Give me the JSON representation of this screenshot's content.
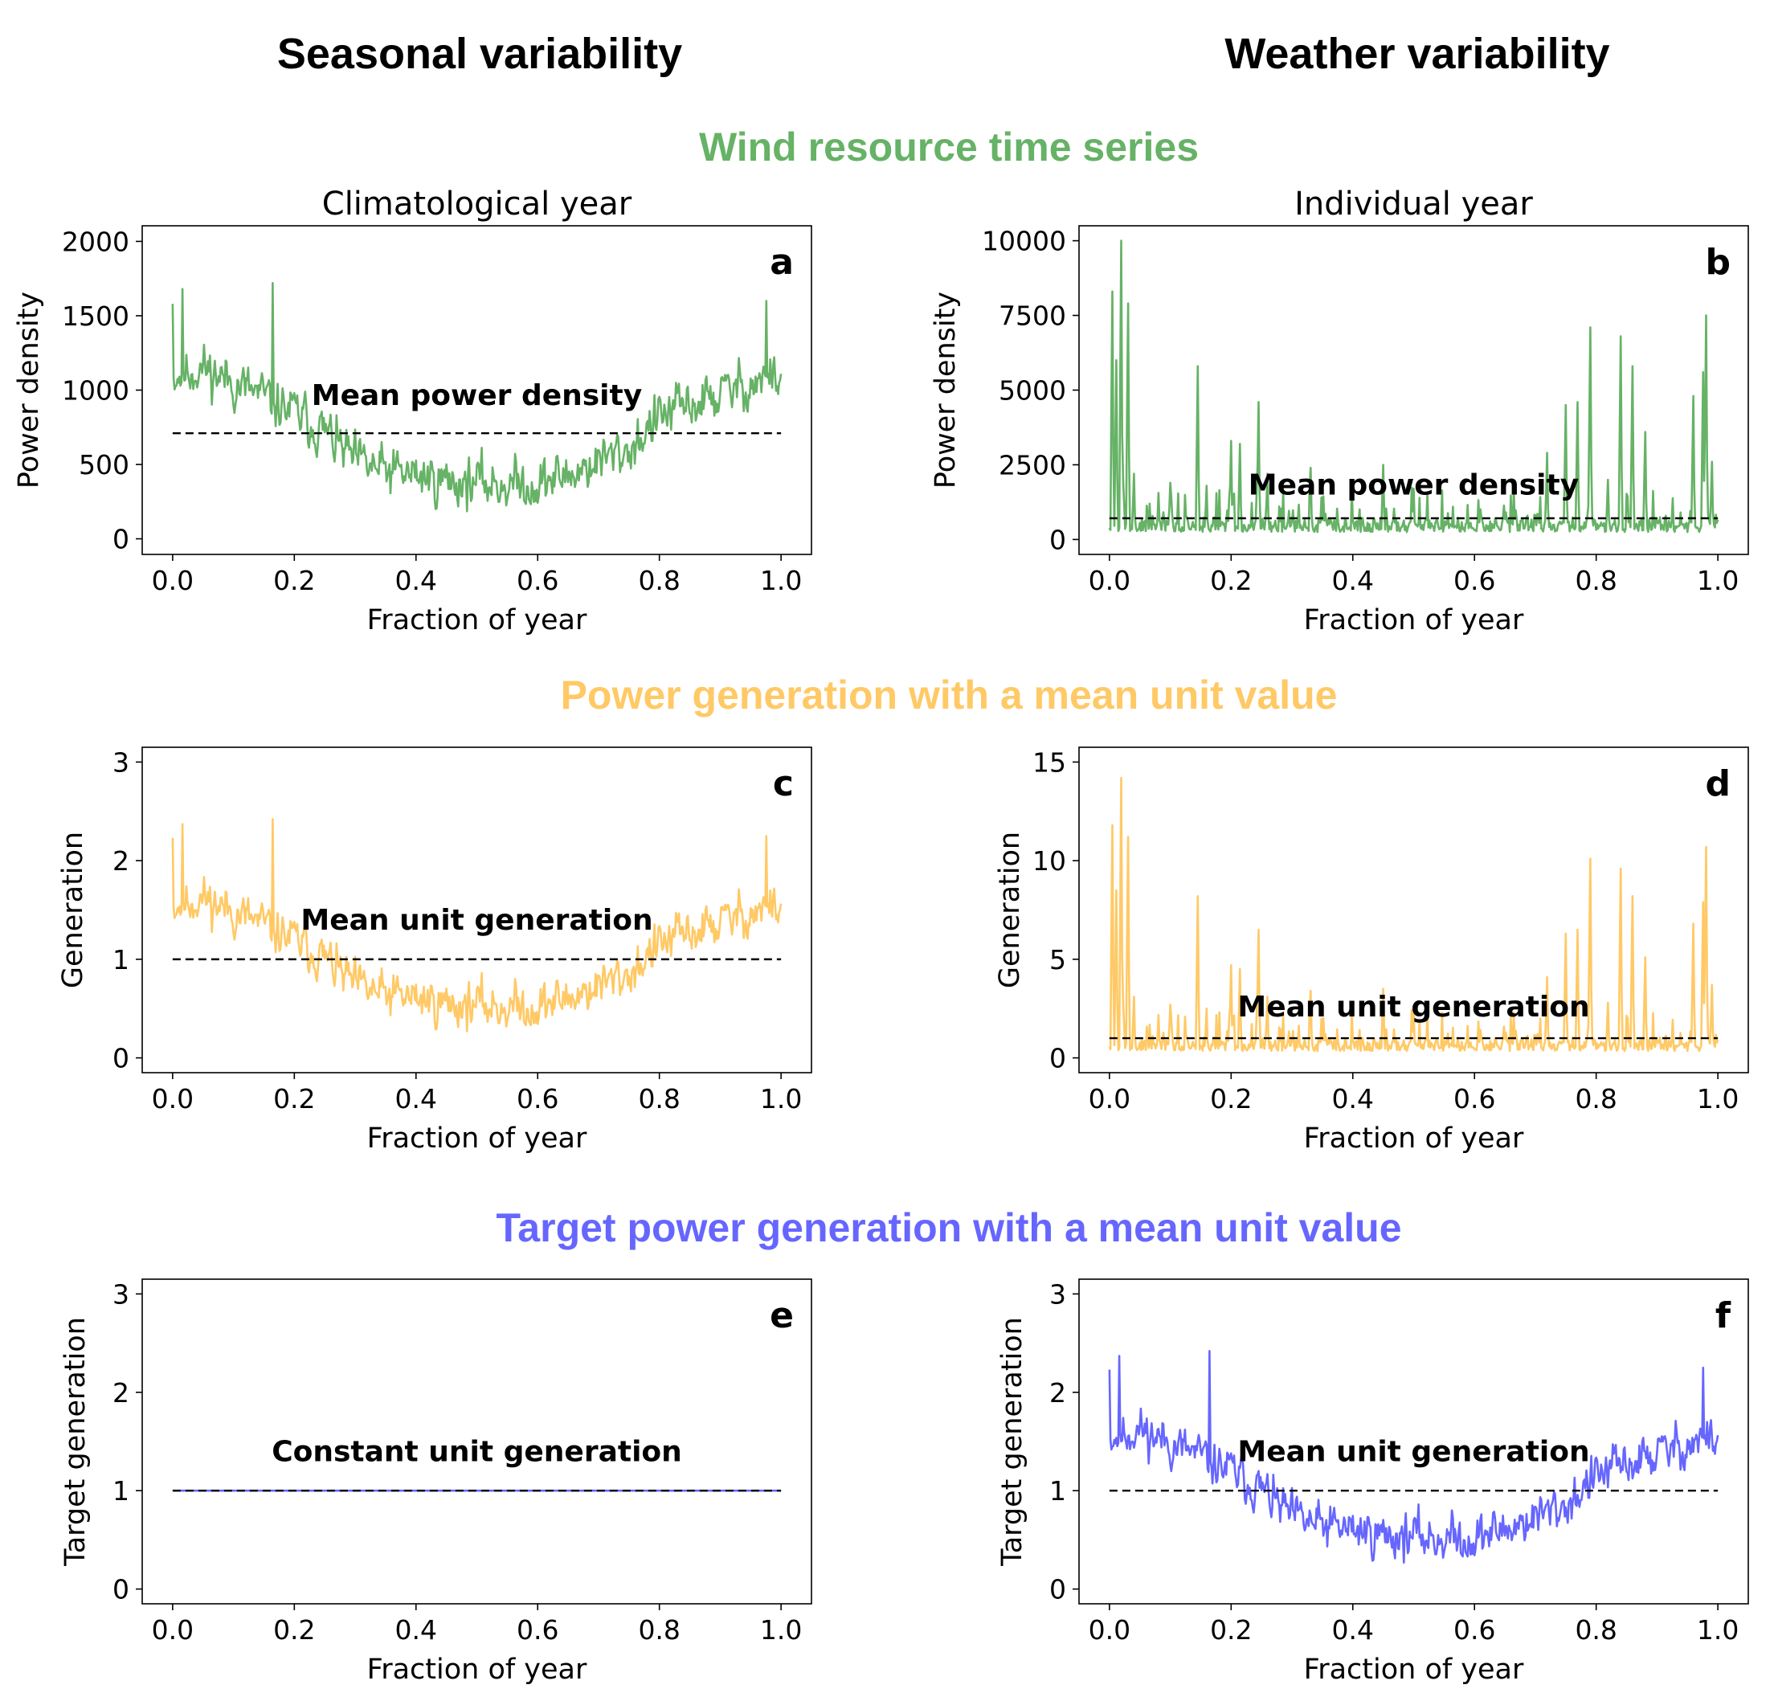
{
  "column_titles": [
    "Seasonal variability",
    "Weather variability"
  ],
  "row_titles": [
    {
      "text": "Wind resource time series",
      "color": "#66b266"
    },
    {
      "text": "Power generation with a mean unit value",
      "color": "#ffc966"
    },
    {
      "text": "Target power generation with a mean unit value",
      "color": "#6666ff"
    }
  ],
  "colors": {
    "green": "#66b266",
    "orange": "#ffc966",
    "blue": "#6666ff",
    "mean_line": "#000000"
  },
  "chart_data": [
    {
      "id": "a",
      "type": "line",
      "letter": "a",
      "title": "Climatological year",
      "xlabel": "Fraction of year",
      "ylabel": "Power density",
      "xlim": [
        -0.05,
        1.05
      ],
      "ylim": [
        -105,
        2105
      ],
      "xticks": [
        0.0,
        0.2,
        0.4,
        0.6,
        0.8,
        1.0
      ],
      "xtick_labels": [
        "0.0",
        "0.2",
        "0.4",
        "0.6",
        "0.8",
        "1.0"
      ],
      "yticks": [
        0,
        500,
        1000,
        1500,
        2000
      ],
      "ytick_labels": [
        "0",
        "500",
        "1000",
        "1500",
        "2000"
      ],
      "mean_value": 710,
      "annotation": "Mean power density",
      "annotation_y": 900,
      "series": [
        {
          "color": "#66b266",
          "kind": "seasonal",
          "scale": 710,
          "seed": 11,
          "key_points": [
            [
              0.0,
              1100
            ],
            [
              0.05,
              1150
            ],
            [
              0.1,
              1050
            ],
            [
              0.15,
              950
            ],
            [
              0.2,
              850
            ],
            [
              0.25,
              720
            ],
            [
              0.3,
              520
            ],
            [
              0.35,
              450
            ],
            [
              0.4,
              430
            ],
            [
              0.45,
              390
            ],
            [
              0.5,
              380
            ],
            [
              0.55,
              370
            ],
            [
              0.6,
              370
            ],
            [
              0.65,
              430
            ],
            [
              0.7,
              520
            ],
            [
              0.75,
              600
            ],
            [
              0.8,
              820
            ],
            [
              0.85,
              900
            ],
            [
              0.9,
              970
            ],
            [
              0.95,
              1050
            ],
            [
              1.0,
              1100
            ]
          ],
          "noise": 130,
          "peaks": [
            [
              0.0,
              1580
            ],
            [
              0.016,
              1680
            ],
            [
              0.165,
              1720
            ],
            [
              0.975,
              1600
            ]
          ]
        }
      ]
    },
    {
      "id": "b",
      "type": "line",
      "letter": "b",
      "title": "Individual year",
      "xlabel": "Fraction of year",
      "ylabel": "Power density",
      "xlim": [
        -0.05,
        1.05
      ],
      "ylim": [
        -500,
        10500
      ],
      "xticks": [
        0.0,
        0.2,
        0.4,
        0.6,
        0.8,
        1.0
      ],
      "xtick_labels": [
        "0.0",
        "0.2",
        "0.4",
        "0.6",
        "0.8",
        "1.0"
      ],
      "yticks": [
        0,
        2500,
        5000,
        7500,
        10000
      ],
      "ytick_labels": [
        "0",
        "2500",
        "5000",
        "7500",
        "10000"
      ],
      "mean_value": 710,
      "annotation": "Mean power density",
      "annotation_y": 1500,
      "series": [
        {
          "color": "#66b266",
          "kind": "spiky",
          "scale": 710,
          "seed": 23,
          "base": 250,
          "noise": 450,
          "peaks": [
            [
              0.005,
              8300
            ],
            [
              0.012,
              6000
            ],
            [
              0.02,
              10000
            ],
            [
              0.03,
              7900
            ],
            [
              0.04,
              2200
            ],
            [
              0.1,
              1900
            ],
            [
              0.145,
              5800
            ],
            [
              0.16,
              1800
            ],
            [
              0.2,
              3300
            ],
            [
              0.215,
              3200
            ],
            [
              0.245,
              4600
            ],
            [
              0.26,
              2200
            ],
            [
              0.33,
              2400
            ],
            [
              0.45,
              2500
            ],
            [
              0.5,
              1700
            ],
            [
              0.72,
              2900
            ],
            [
              0.75,
              4500
            ],
            [
              0.77,
              4600
            ],
            [
              0.79,
              7100
            ],
            [
              0.82,
              2000
            ],
            [
              0.84,
              6800
            ],
            [
              0.86,
              5800
            ],
            [
              0.88,
              3600
            ],
            [
              0.96,
              4800
            ],
            [
              0.975,
              5600
            ],
            [
              0.98,
              7500
            ],
            [
              0.99,
              2600
            ]
          ]
        }
      ]
    },
    {
      "id": "c",
      "type": "line",
      "letter": "c",
      "title": "",
      "xlabel": "Fraction of year",
      "ylabel": "Generation",
      "xlim": [
        -0.05,
        1.05
      ],
      "ylim": [
        -0.15,
        3.15
      ],
      "xticks": [
        0.0,
        0.2,
        0.4,
        0.6,
        0.8,
        1.0
      ],
      "xtick_labels": [
        "0.0",
        "0.2",
        "0.4",
        "0.6",
        "0.8",
        "1.0"
      ],
      "yticks": [
        0,
        1,
        2,
        3
      ],
      "ytick_labels": [
        "0",
        "1",
        "2",
        "3"
      ],
      "mean_value": 1,
      "annotation": "Mean unit generation",
      "annotation_y": 1.3,
      "series": [
        {
          "color": "#ffc966",
          "kind": "seasonal",
          "scale": 1,
          "seed": 11,
          "key_points": [
            [
              0.0,
              1.55
            ],
            [
              0.05,
              1.62
            ],
            [
              0.1,
              1.48
            ],
            [
              0.15,
              1.34
            ],
            [
              0.2,
              1.2
            ],
            [
              0.25,
              1.01
            ],
            [
              0.3,
              0.73
            ],
            [
              0.35,
              0.63
            ],
            [
              0.4,
              0.61
            ],
            [
              0.45,
              0.55
            ],
            [
              0.5,
              0.54
            ],
            [
              0.55,
              0.52
            ],
            [
              0.6,
              0.52
            ],
            [
              0.65,
              0.61
            ],
            [
              0.7,
              0.73
            ],
            [
              0.75,
              0.85
            ],
            [
              0.8,
              1.15
            ],
            [
              0.85,
              1.27
            ],
            [
              0.9,
              1.37
            ],
            [
              0.95,
              1.48
            ],
            [
              1.0,
              1.55
            ]
          ],
          "noise": 0.18,
          "peaks": [
            [
              0.0,
              2.23
            ],
            [
              0.016,
              2.37
            ],
            [
              0.165,
              2.42
            ],
            [
              0.975,
              2.25
            ]
          ]
        }
      ]
    },
    {
      "id": "d",
      "type": "line",
      "letter": "d",
      "title": "",
      "xlabel": "Fraction of year",
      "ylabel": "Generation",
      "xlim": [
        -0.05,
        1.05
      ],
      "ylim": [
        -0.75,
        15.75
      ],
      "xticks": [
        0.0,
        0.2,
        0.4,
        0.6,
        0.8,
        1.0
      ],
      "xtick_labels": [
        "0.0",
        "0.2",
        "0.4",
        "0.6",
        "0.8",
        "1.0"
      ],
      "yticks": [
        0,
        5,
        10,
        15
      ],
      "ytick_labels": [
        "0",
        "5",
        "10",
        "15"
      ],
      "mean_value": 1,
      "annotation": "Mean unit generation",
      "annotation_y": 2.1,
      "series": [
        {
          "color": "#ffc966",
          "kind": "spiky",
          "scale": 1,
          "seed": 23,
          "base": 0.35,
          "noise": 0.63,
          "peaks": [
            [
              0.005,
              11.8
            ],
            [
              0.012,
              8.5
            ],
            [
              0.02,
              14.2
            ],
            [
              0.03,
              11.2
            ],
            [
              0.04,
              3.1
            ],
            [
              0.1,
              2.7
            ],
            [
              0.145,
              8.2
            ],
            [
              0.16,
              2.5
            ],
            [
              0.2,
              4.7
            ],
            [
              0.215,
              4.5
            ],
            [
              0.245,
              6.5
            ],
            [
              0.26,
              3.1
            ],
            [
              0.33,
              3.4
            ],
            [
              0.45,
              3.5
            ],
            [
              0.5,
              2.4
            ],
            [
              0.72,
              4.1
            ],
            [
              0.75,
              6.3
            ],
            [
              0.77,
              6.5
            ],
            [
              0.79,
              10.1
            ],
            [
              0.82,
              2.8
            ],
            [
              0.84,
              9.6
            ],
            [
              0.86,
              8.2
            ],
            [
              0.88,
              5.1
            ],
            [
              0.96,
              6.8
            ],
            [
              0.975,
              7.9
            ],
            [
              0.98,
              10.7
            ],
            [
              0.99,
              3.7
            ]
          ]
        }
      ]
    },
    {
      "id": "e",
      "type": "line",
      "letter": "e",
      "title": "",
      "xlabel": "Fraction of year",
      "ylabel": "Target generation",
      "xlim": [
        -0.05,
        1.05
      ],
      "ylim": [
        -0.15,
        3.15
      ],
      "xticks": [
        0.0,
        0.2,
        0.4,
        0.6,
        0.8,
        1.0
      ],
      "xtick_labels": [
        "0.0",
        "0.2",
        "0.4",
        "0.6",
        "0.8",
        "1.0"
      ],
      "yticks": [
        0,
        1,
        2,
        3
      ],
      "ytick_labels": [
        "0",
        "1",
        "2",
        "3"
      ],
      "mean_value": 1,
      "annotation": "Constant unit generation",
      "annotation_y": 1.3,
      "series": [
        {
          "color": "#6666ff",
          "kind": "constant",
          "value": 1
        }
      ]
    },
    {
      "id": "f",
      "type": "line",
      "letter": "f",
      "title": "",
      "xlabel": "Fraction of year",
      "ylabel": "Target generation",
      "xlim": [
        -0.05,
        1.05
      ],
      "ylim": [
        -0.15,
        3.15
      ],
      "xticks": [
        0.0,
        0.2,
        0.4,
        0.6,
        0.8,
        1.0
      ],
      "xtick_labels": [
        "0.0",
        "0.2",
        "0.4",
        "0.6",
        "0.8",
        "1.0"
      ],
      "yticks": [
        0,
        1,
        2,
        3
      ],
      "ytick_labels": [
        "0",
        "1",
        "2",
        "3"
      ],
      "mean_value": 1,
      "annotation": "Mean unit generation",
      "annotation_y": 1.3,
      "series": [
        {
          "color": "#6666ff",
          "kind": "seasonal",
          "scale": 1,
          "seed": 11,
          "key_points": [
            [
              0.0,
              1.55
            ],
            [
              0.05,
              1.62
            ],
            [
              0.1,
              1.48
            ],
            [
              0.15,
              1.34
            ],
            [
              0.2,
              1.2
            ],
            [
              0.25,
              1.01
            ],
            [
              0.3,
              0.73
            ],
            [
              0.35,
              0.63
            ],
            [
              0.4,
              0.61
            ],
            [
              0.45,
              0.55
            ],
            [
              0.5,
              0.54
            ],
            [
              0.55,
              0.52
            ],
            [
              0.6,
              0.52
            ],
            [
              0.65,
              0.61
            ],
            [
              0.7,
              0.73
            ],
            [
              0.75,
              0.85
            ],
            [
              0.8,
              1.15
            ],
            [
              0.85,
              1.27
            ],
            [
              0.9,
              1.37
            ],
            [
              0.95,
              1.48
            ],
            [
              1.0,
              1.55
            ]
          ],
          "noise": 0.18,
          "peaks": [
            [
              0.0,
              2.23
            ],
            [
              0.016,
              2.37
            ],
            [
              0.165,
              2.42
            ],
            [
              0.975,
              2.25
            ]
          ]
        }
      ]
    }
  ]
}
